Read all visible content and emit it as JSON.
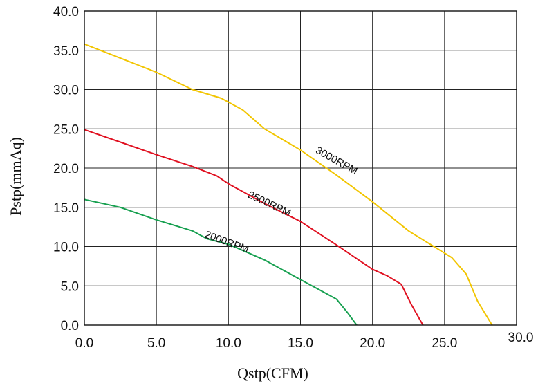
{
  "chart_data": {
    "type": "line",
    "title": "",
    "xlabel": "Qstp(CFM)",
    "ylabel": "Pstp(mmAq)",
    "xlim": [
      0,
      30
    ],
    "ylim": [
      0,
      40
    ],
    "x_ticks": [
      "0.0",
      "5.0",
      "10.0",
      "15.0",
      "20.0",
      "25.0",
      "30.0"
    ],
    "y_ticks": [
      "0.0",
      "5.0",
      "10.0",
      "15.0",
      "20.0",
      "25.0",
      "30.0",
      "35.0",
      "40.0"
    ],
    "grid": true,
    "legend": "none",
    "series": [
      {
        "name": "3000RPM",
        "color": "#f2c500",
        "points": [
          [
            0,
            35.8
          ],
          [
            2.5,
            34.0
          ],
          [
            5,
            32.2
          ],
          [
            7.5,
            30.0
          ],
          [
            9.5,
            28.9
          ],
          [
            11,
            27.4
          ],
          [
            12.5,
            25.0
          ],
          [
            15,
            22.3
          ],
          [
            17.5,
            19.1
          ],
          [
            20,
            15.7
          ],
          [
            22.5,
            12.0
          ],
          [
            24,
            10.3
          ],
          [
            25.5,
            8.6
          ],
          [
            26.5,
            6.5
          ],
          [
            27.3,
            3.0
          ],
          [
            28.3,
            0
          ]
        ]
      },
      {
        "name": "2500RPM",
        "color": "#e01020",
        "points": [
          [
            0,
            24.9
          ],
          [
            2.5,
            23.3
          ],
          [
            5,
            21.7
          ],
          [
            7.5,
            20.2
          ],
          [
            9.2,
            19.0
          ],
          [
            10,
            18.0
          ],
          [
            12.5,
            15.5
          ],
          [
            15,
            13.2
          ],
          [
            17.5,
            10.2
          ],
          [
            20,
            7.1
          ],
          [
            21,
            6.3
          ],
          [
            22,
            5.2
          ],
          [
            22.7,
            2.6
          ],
          [
            23.5,
            0
          ]
        ]
      },
      {
        "name": "2000RPM",
        "color": "#17a050",
        "points": [
          [
            0,
            16.0
          ],
          [
            2.5,
            15.0
          ],
          [
            5,
            13.4
          ],
          [
            7.5,
            12.0
          ],
          [
            8.5,
            11.0
          ],
          [
            10,
            10.3
          ],
          [
            12.5,
            8.3
          ],
          [
            15,
            5.8
          ],
          [
            16.2,
            4.6
          ],
          [
            17.5,
            3.3
          ],
          [
            18.3,
            1.5
          ],
          [
            18.9,
            0
          ]
        ]
      }
    ]
  }
}
